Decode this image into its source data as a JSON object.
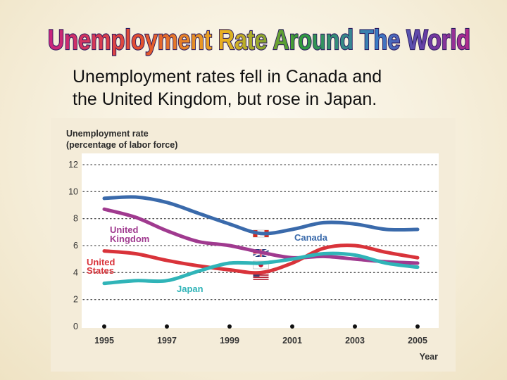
{
  "header": {
    "title": "Unemployment Rate Around The World",
    "subtitle": "Unemployment rates fell in Canada and\nthe United Kingdom, but rose in Japan."
  },
  "chart_data": {
    "type": "line",
    "title": "",
    "ylabel": "Unemployment rate\n(percentage of labor force)",
    "xlabel": "Year",
    "ylim": [
      0,
      12
    ],
    "yticks": [
      0,
      2,
      4,
      6,
      8,
      10,
      12
    ],
    "xlim": [
      1994.8,
      2005.8
    ],
    "xticks": [
      1995,
      1997,
      1999,
      2001,
      2003,
      2005
    ],
    "grid": "horizontal dotted",
    "legend": "inline labels",
    "series": [
      {
        "name": "Canada",
        "color": "#3a6aab",
        "x": [
          1995,
          1996,
          1997,
          1998,
          1999,
          2000,
          2001,
          2002,
          2003,
          2004,
          2005
        ],
        "y": [
          9.5,
          9.6,
          9.2,
          8.4,
          7.6,
          6.9,
          7.2,
          7.7,
          7.6,
          7.2,
          7.2
        ]
      },
      {
        "name": "United Kingdom",
        "color": "#a03a8f",
        "x": [
          1995,
          1996,
          1997,
          1998,
          1999,
          2000,
          2001,
          2002,
          2003,
          2004,
          2005
        ],
        "y": [
          8.7,
          8.1,
          7.1,
          6.3,
          6.0,
          5.5,
          5.1,
          5.2,
          5.0,
          4.8,
          4.7
        ]
      },
      {
        "name": "United States",
        "color": "#d9333a",
        "x": [
          1995,
          1996,
          1997,
          1998,
          1999,
          2000,
          2001,
          2002,
          2003,
          2004,
          2005
        ],
        "y": [
          5.6,
          5.4,
          4.9,
          4.5,
          4.2,
          4.0,
          4.7,
          5.8,
          6.0,
          5.5,
          5.1
        ]
      },
      {
        "name": "Japan",
        "color": "#30b4b8",
        "x": [
          1995,
          1996,
          1997,
          1998,
          1999,
          2000,
          2001,
          2002,
          2003,
          2004,
          2005
        ],
        "y": [
          3.2,
          3.4,
          3.4,
          4.1,
          4.7,
          4.7,
          5.0,
          5.4,
          5.3,
          4.7,
          4.4
        ]
      }
    ]
  },
  "colors": {
    "title_gradient": [
      "#c7227f",
      "#e4502e",
      "#f1a72c",
      "#2f9a3a",
      "#3b7cc4",
      "#6a3aa3",
      "#b42a8c"
    ]
  }
}
